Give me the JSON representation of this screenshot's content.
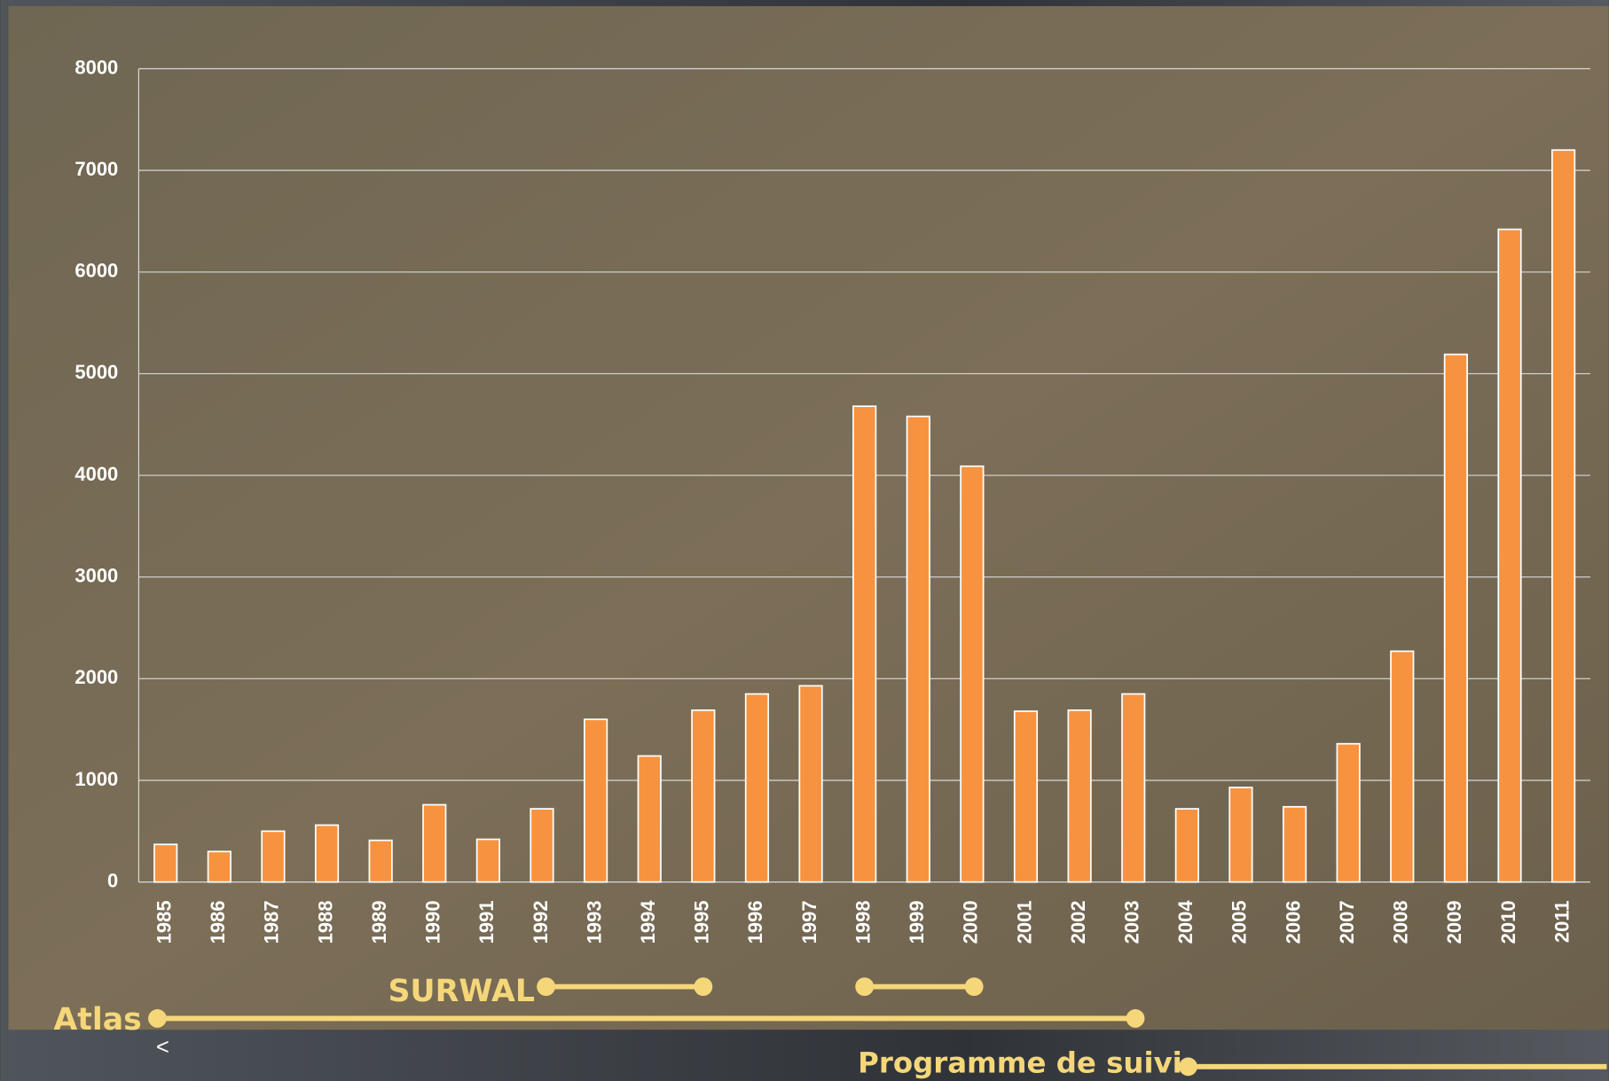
{
  "chart_data": {
    "type": "bar",
    "categories": [
      "1985",
      "1986",
      "1987",
      "1988",
      "1989",
      "1990",
      "1991",
      "1992",
      "1993",
      "1994",
      "1995",
      "1996",
      "1997",
      "1998",
      "1999",
      "2000",
      "2001",
      "2002",
      "2003",
      "2004",
      "2005",
      "2006",
      "2007",
      "2008",
      "2009",
      "2010",
      "2011"
    ],
    "values": [
      370,
      300,
      500,
      560,
      410,
      760,
      420,
      720,
      1600,
      1240,
      1690,
      1850,
      1930,
      4680,
      4580,
      4090,
      1680,
      1690,
      1850,
      720,
      930,
      740,
      1360,
      2270,
      5190,
      6420,
      7200
    ],
    "color": "#f7923f",
    "ylim": [
      0,
      8000
    ],
    "yticks": [
      0,
      1000,
      2000,
      3000,
      4000,
      5000,
      6000,
      7000,
      8000
    ],
    "grid": true,
    "annotations": [
      "SURWAL",
      "Atlas",
      "Programme de suivi",
      "<"
    ]
  }
}
